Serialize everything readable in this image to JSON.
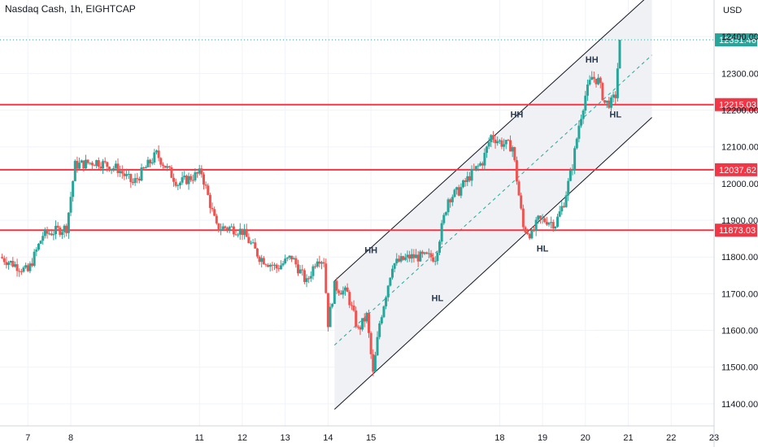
{
  "header": {
    "symbol": "Nasdaq Cash",
    "interval": "1h",
    "broker": "EIGHTCAP"
  },
  "colors": {
    "up": "#26a69a",
    "down": "#ef5350",
    "level": "#f23645",
    "last": "#26a69a",
    "channel_fill": "#f0f1f5",
    "channel_line": "#131722",
    "midline": "#26a69a",
    "grid": "#f0f3fa",
    "axis_text": "#131722",
    "annotation": "#2a3a4f"
  },
  "chart_data": {
    "type": "candlestick",
    "currency": "USD",
    "ylim": [
      11340,
      12500
    ],
    "y_ticks": [
      11400,
      11500,
      11600,
      11700,
      11800,
      11900,
      12000,
      12100,
      12200,
      12300,
      12400
    ],
    "y_tick_labels": [
      "11400.00",
      "11500.00",
      "11600.00",
      "11700.00",
      "11800.00",
      "11900.00",
      "12000.00",
      "12100.00",
      "12200.00",
      "12300.00",
      "12400.00"
    ],
    "x_range": [
      6.35,
      23.0
    ],
    "x_ticks": [
      7,
      8,
      11,
      12,
      13,
      14,
      15,
      18,
      19,
      20,
      21,
      22,
      23
    ],
    "x_tick_labels": [
      "7",
      "8",
      "11",
      "12",
      "13",
      "14",
      "15",
      "18",
      "19",
      "20",
      "21",
      "22",
      "23"
    ],
    "x_positions": [
      6.35,
      7.0,
      7.35,
      7.9,
      8.1,
      8.6,
      9.1,
      9.45,
      10.0,
      10.5,
      11.05,
      11.4,
      11.7,
      12.0,
      12.4,
      12.8,
      13.15,
      13.5,
      13.75,
      13.9,
      14.0,
      14.15,
      14.45,
      14.7,
      14.9,
      15.05,
      15.2,
      15.5,
      15.9,
      16.2,
      16.5,
      16.8,
      17.05,
      17.3,
      17.6,
      17.8,
      18.05,
      18.3,
      18.55,
      18.75,
      18.9,
      19.1,
      19.3,
      19.5,
      19.7,
      19.85,
      20.0,
      20.15,
      20.3,
      20.45,
      20.6,
      20.7,
      20.8
    ],
    "closes": [
      11800,
      11760,
      11860,
      11880,
      12050,
      12060,
      12040,
      12000,
      12080,
      12000,
      12030,
      11880,
      11880,
      11870,
      11800,
      11770,
      11800,
      11730,
      11800,
      11790,
      11620,
      11720,
      11700,
      11600,
      11640,
      11480,
      11620,
      11780,
      11800,
      11800,
      11800,
      11960,
      11980,
      12020,
      12060,
      12130,
      12110,
      12100,
      11880,
      11860,
      11900,
      11900,
      11890,
      11950,
      12050,
      12160,
      12240,
      12290,
      12280,
      12220,
      12220,
      12240,
      12391.46
    ],
    "levels": [
      {
        "value": 12215.03,
        "label": "12215.03"
      },
      {
        "value": 12037.62,
        "label": "12037.62"
      },
      {
        "value": 11873.03,
        "label": "11873.03"
      }
    ],
    "last_price": {
      "value": 12391.46,
      "label": "12391.46"
    },
    "channel": {
      "x_start": 14.15,
      "x_end": 21.55,
      "lower_start": 11385,
      "lower_end": 12180,
      "upper_start": 11735,
      "upper_end": 12520
    },
    "annotations": [
      {
        "text": "HH",
        "x": 15.0,
        "y": 11810
      },
      {
        "text": "HL",
        "x": 16.55,
        "y": 11680
      },
      {
        "text": "HH",
        "x": 18.4,
        "y": 12180
      },
      {
        "text": "HL",
        "x": 19.0,
        "y": 11815
      },
      {
        "text": "HH",
        "x": 20.15,
        "y": 12330
      },
      {
        "text": "HL",
        "x": 20.7,
        "y": 12180
      }
    ]
  }
}
